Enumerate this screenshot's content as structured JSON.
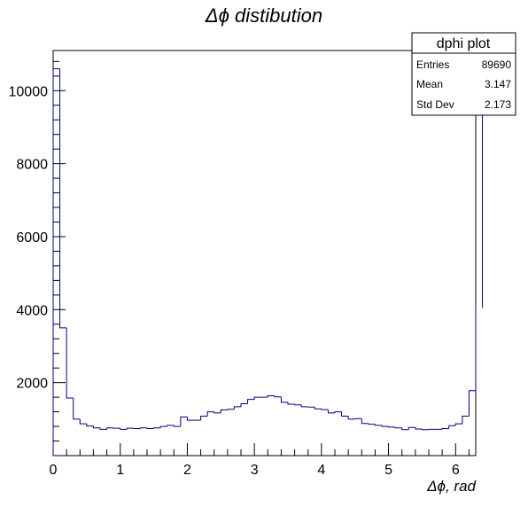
{
  "chart_data": {
    "type": "histogram",
    "title": "Δϕ distibution",
    "xlabel": "Δϕ, rad",
    "ylabel": "",
    "xlim": [
      0,
      6.3
    ],
    "ylim": [
      0,
      11100
    ],
    "line_color": "#000080",
    "bin_width": 0.1,
    "x_start": 0,
    "values": [
      10600,
      3500,
      1580,
      1000,
      870,
      810,
      760,
      720,
      760,
      750,
      720,
      750,
      740,
      760,
      740,
      760,
      800,
      830,
      800,
      1060,
      970,
      970,
      1080,
      1200,
      1170,
      1250,
      1270,
      1340,
      1420,
      1540,
      1600,
      1600,
      1640,
      1610,
      1460,
      1410,
      1390,
      1340,
      1330,
      1280,
      1260,
      1170,
      1200,
      1080,
      1000,
      1010,
      880,
      860,
      830,
      800,
      780,
      760,
      710,
      770,
      730,
      710,
      720,
      720,
      740,
      820,
      870,
      1080,
      1780,
      4050,
      11100
    ],
    "x_ticks": [
      0,
      1,
      2,
      3,
      4,
      5,
      6
    ],
    "x_tick_labels": [
      "0",
      "1",
      "2",
      "3",
      "4",
      "5",
      "6"
    ],
    "y_ticks": [
      2000,
      4000,
      6000,
      8000,
      10000
    ],
    "y_tick_labels": [
      "2000",
      "4000",
      "6000",
      "8000",
      "10000"
    ],
    "stats_box": {
      "title": "dphi plot",
      "rows": [
        {
          "label": "Entries",
          "value": "89690"
        },
        {
          "label": "Mean",
          "value": "3.147"
        },
        {
          "label": "Std Dev",
          "value": "2.173"
        }
      ]
    }
  }
}
